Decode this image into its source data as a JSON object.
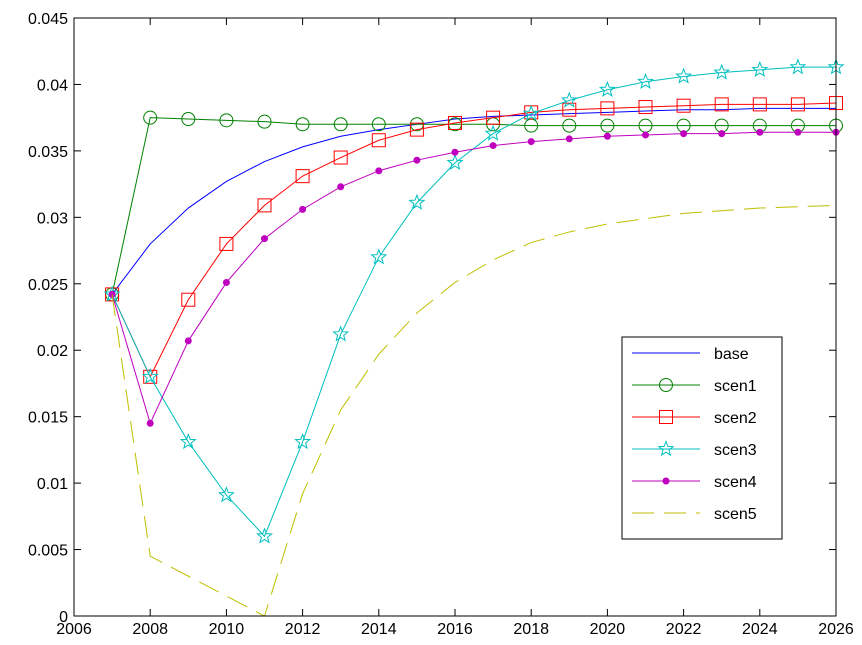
{
  "chart_data": {
    "type": "line",
    "title": "",
    "xlabel": "",
    "ylabel": "",
    "xlim": [
      2006,
      2026
    ],
    "ylim": [
      0,
      0.045
    ],
    "grid": false,
    "legend_position": "lower-right",
    "x_ticks": [
      {
        "value": 2006,
        "label": "2006"
      },
      {
        "value": 2008,
        "label": "2008"
      },
      {
        "value": 2010,
        "label": "2010"
      },
      {
        "value": 2012,
        "label": "2012"
      },
      {
        "value": 2014,
        "label": "2014"
      },
      {
        "value": 2016,
        "label": "2016"
      },
      {
        "value": 2018,
        "label": "2018"
      },
      {
        "value": 2020,
        "label": "2020"
      },
      {
        "value": 2022,
        "label": "2022"
      },
      {
        "value": 2024,
        "label": "2024"
      },
      {
        "value": 2026,
        "label": "2026"
      }
    ],
    "y_ticks": [
      {
        "value": 0,
        "label": "0"
      },
      {
        "value": 0.005,
        "label": "0.005"
      },
      {
        "value": 0.01,
        "label": "0.01"
      },
      {
        "value": 0.015,
        "label": "0.015"
      },
      {
        "value": 0.02,
        "label": "0.02"
      },
      {
        "value": 0.025,
        "label": "0.025"
      },
      {
        "value": 0.03,
        "label": "0.03"
      },
      {
        "value": 0.035,
        "label": "0.035"
      },
      {
        "value": 0.04,
        "label": "0.04"
      },
      {
        "value": 0.045,
        "label": "0.045"
      }
    ],
    "x": [
      2007,
      2008,
      2009,
      2010,
      2011,
      2012,
      2013,
      2014,
      2015,
      2016,
      2017,
      2018,
      2019,
      2020,
      2021,
      2022,
      2023,
      2024,
      2025,
      2026
    ],
    "series": [
      {
        "name": "base",
        "color": "#0000ff",
        "marker": "none",
        "dash": "solid",
        "values": [
          0.0242,
          0.028,
          0.0307,
          0.0327,
          0.0342,
          0.0353,
          0.0361,
          0.0366,
          0.037,
          0.0374,
          0.0376,
          0.0377,
          0.0378,
          0.0379,
          0.038,
          0.0381,
          0.0381,
          0.0382,
          0.0382,
          0.0382
        ]
      },
      {
        "name": "scen1",
        "color": "#008000",
        "marker": "circle",
        "dash": "solid",
        "values": [
          0.0242,
          0.0375,
          0.0374,
          0.0373,
          0.0372,
          0.037,
          0.037,
          0.037,
          0.037,
          0.037,
          0.037,
          0.0369,
          0.0369,
          0.0369,
          0.0369,
          0.0369,
          0.0369,
          0.0369,
          0.0369,
          0.0369
        ]
      },
      {
        "name": "scen2",
        "color": "#ff0000",
        "marker": "square",
        "dash": "solid",
        "values": [
          0.0242,
          0.018,
          0.0238,
          0.028,
          0.0309,
          0.0331,
          0.0345,
          0.0358,
          0.0366,
          0.0371,
          0.0375,
          0.0379,
          0.0381,
          0.0382,
          0.0383,
          0.0384,
          0.0385,
          0.0385,
          0.0385,
          0.0386
        ]
      },
      {
        "name": "scen3",
        "color": "#00bfbf",
        "marker": "star",
        "dash": "solid",
        "values": [
          0.0242,
          0.018,
          0.0131,
          0.0091,
          0.006,
          0.0131,
          0.0212,
          0.027,
          0.0311,
          0.0341,
          0.0363,
          0.0378,
          0.0388,
          0.0396,
          0.0402,
          0.0406,
          0.0409,
          0.0411,
          0.0413,
          0.0413
        ]
      },
      {
        "name": "scen4",
        "color": "#bf00bf",
        "marker": "dot",
        "dash": "solid",
        "values": [
          0.0242,
          0.0145,
          0.0207,
          0.0251,
          0.0284,
          0.0306,
          0.0323,
          0.0335,
          0.0343,
          0.0349,
          0.0354,
          0.0357,
          0.0359,
          0.0361,
          0.0362,
          0.0363,
          0.0363,
          0.0364,
          0.0364,
          0.0364
        ]
      },
      {
        "name": "scen5",
        "color": "#bfbf00",
        "marker": "none",
        "dash": "dashed",
        "values": [
          0.0242,
          0.0045,
          0.003,
          0.0015,
          0.0,
          0.0092,
          0.0155,
          0.0197,
          0.0228,
          0.0251,
          0.0268,
          0.0281,
          0.0289,
          0.0295,
          0.0299,
          0.0303,
          0.0305,
          0.0307,
          0.0308,
          0.0309
        ]
      }
    ]
  }
}
